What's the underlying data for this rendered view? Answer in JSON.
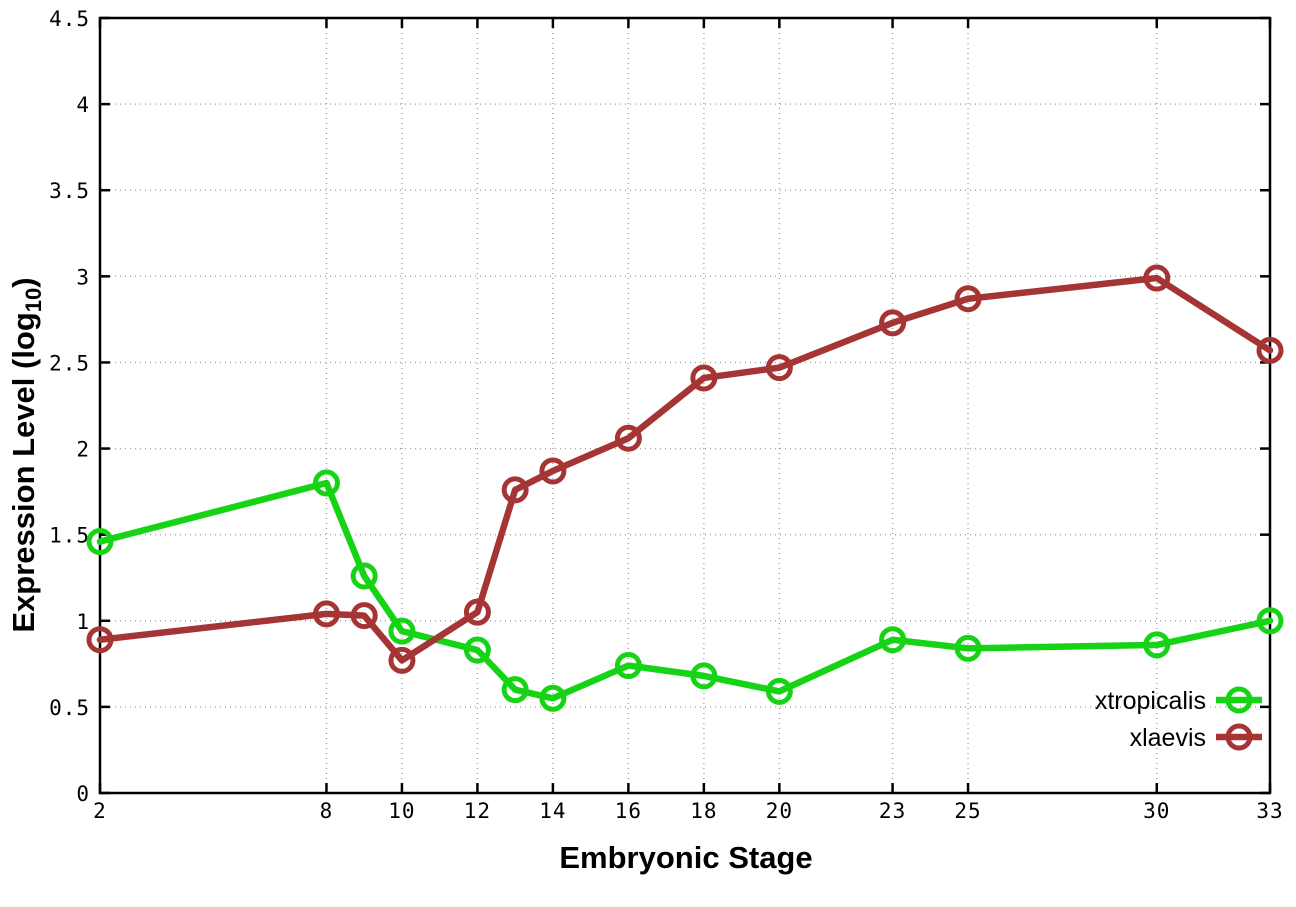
{
  "chart_data": {
    "type": "line",
    "title": "",
    "xlabel": "Embryonic Stage",
    "ylabel": "Expression Level (log10)",
    "ylabel_parts": {
      "main": "Expression Level (log",
      "sub": "10",
      "close": ")"
    },
    "xlim": [
      2,
      33
    ],
    "ylim": [
      0,
      4.5
    ],
    "grid": true,
    "legend_position": "inside-right-lower",
    "xticks": [
      2,
      8,
      10,
      12,
      14,
      16,
      18,
      20,
      23,
      25,
      30,
      33
    ],
    "yticks": [
      0,
      0.5,
      1,
      1.5,
      2,
      2.5,
      3,
      3.5,
      4,
      4.5
    ],
    "x": [
      2,
      8,
      9,
      10,
      12,
      13,
      14,
      16,
      18,
      20,
      23,
      25,
      30,
      33
    ],
    "series": [
      {
        "name": "xtropicalis",
        "color": "#16d316",
        "values": [
          1.46,
          1.8,
          1.26,
          0.94,
          0.83,
          0.6,
          0.55,
          0.74,
          0.68,
          0.59,
          0.89,
          0.84,
          0.86,
          1.0
        ]
      },
      {
        "name": "xlaevis",
        "color": "#a53434",
        "values": [
          0.89,
          1.04,
          1.03,
          0.77,
          1.05,
          1.76,
          1.87,
          2.06,
          2.41,
          2.47,
          2.73,
          2.87,
          2.99,
          2.57
        ]
      }
    ]
  },
  "colors": {
    "background": "#ffffff",
    "axis": "#000000",
    "grid": "#a0a0a0",
    "text": "#000000",
    "series_green": "#16d316",
    "series_red": "#a53434"
  }
}
